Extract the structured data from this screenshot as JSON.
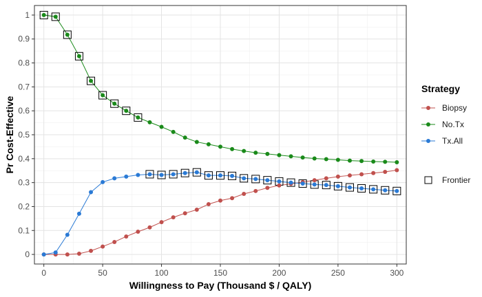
{
  "chart_data": {
    "type": "line",
    "xlabel": "Willingness to Pay (Thousand $ / QALY)",
    "ylabel": "Pr Cost-Effective",
    "xlim": [
      -8,
      308
    ],
    "ylim": [
      -0.04,
      1.04
    ],
    "x_ticks": [
      0,
      50,
      100,
      150,
      200,
      250,
      300
    ],
    "x_tick_labels": [
      "0",
      "50",
      "100",
      "150",
      "200",
      "250",
      "300"
    ],
    "y_ticks": [
      0,
      0.1,
      0.2,
      0.3,
      0.4,
      0.5,
      0.6,
      0.7,
      0.8,
      0.9,
      1
    ],
    "y_tick_labels": [
      "0",
      "0.1",
      "0.2",
      "0.3",
      "0.4",
      "0.5",
      "0.6",
      "0.7",
      "0.8",
      "0.9",
      "1"
    ],
    "grid": true,
    "legend_title": "Strategy",
    "legend_position": "right",
    "x": [
      0,
      10,
      20,
      30,
      40,
      50,
      60,
      70,
      80,
      90,
      100,
      110,
      120,
      130,
      140,
      150,
      160,
      170,
      180,
      190,
      200,
      210,
      220,
      230,
      240,
      250,
      260,
      270,
      280,
      290,
      300
    ],
    "series": [
      {
        "name": "Biopsy",
        "color": "#c0504d",
        "values": [
          0,
          0,
          0,
          0.003,
          0.015,
          0.033,
          0.052,
          0.075,
          0.095,
          0.113,
          0.135,
          0.155,
          0.172,
          0.187,
          0.21,
          0.225,
          0.235,
          0.253,
          0.265,
          0.278,
          0.288,
          0.295,
          0.302,
          0.31,
          0.318,
          0.325,
          0.33,
          0.335,
          0.34,
          0.345,
          0.352
        ]
      },
      {
        "name": "No.Tx",
        "color": "#1a8a1a",
        "values": [
          1,
          0.993,
          0.918,
          0.828,
          0.725,
          0.665,
          0.63,
          0.6,
          0.572,
          0.552,
          0.533,
          0.512,
          0.488,
          0.47,
          0.46,
          0.45,
          0.44,
          0.432,
          0.425,
          0.42,
          0.415,
          0.41,
          0.405,
          0.401,
          0.398,
          0.395,
          0.392,
          0.39,
          0.388,
          0.387,
          0.385
        ]
      },
      {
        "name": "Tx.All",
        "color": "#2a7ad5",
        "values": [
          0,
          0.008,
          0.082,
          0.17,
          0.26,
          0.302,
          0.318,
          0.325,
          0.332,
          0.335,
          0.332,
          0.335,
          0.34,
          0.343,
          0.33,
          0.33,
          0.328,
          0.318,
          0.315,
          0.31,
          0.305,
          0.3,
          0.296,
          0.292,
          0.29,
          0.285,
          0.28,
          0.276,
          0.272,
          0.268,
          0.265
        ]
      }
    ],
    "frontier": {
      "name": "Frontier",
      "points": [
        {
          "x": 0,
          "y": 1
        },
        {
          "x": 10,
          "y": 0.993
        },
        {
          "x": 20,
          "y": 0.918
        },
        {
          "x": 30,
          "y": 0.828
        },
        {
          "x": 40,
          "y": 0.725
        },
        {
          "x": 50,
          "y": 0.665
        },
        {
          "x": 60,
          "y": 0.63
        },
        {
          "x": 70,
          "y": 0.6
        },
        {
          "x": 80,
          "y": 0.572
        },
        {
          "x": 90,
          "y": 0.335
        },
        {
          "x": 100,
          "y": 0.332
        },
        {
          "x": 110,
          "y": 0.335
        },
        {
          "x": 120,
          "y": 0.34
        },
        {
          "x": 130,
          "y": 0.343
        },
        {
          "x": 140,
          "y": 0.33
        },
        {
          "x": 150,
          "y": 0.33
        },
        {
          "x": 160,
          "y": 0.328
        },
        {
          "x": 170,
          "y": 0.318
        },
        {
          "x": 180,
          "y": 0.315
        },
        {
          "x": 190,
          "y": 0.31
        },
        {
          "x": 200,
          "y": 0.305
        },
        {
          "x": 210,
          "y": 0.3
        },
        {
          "x": 220,
          "y": 0.296
        },
        {
          "x": 230,
          "y": 0.292
        },
        {
          "x": 240,
          "y": 0.29
        },
        {
          "x": 250,
          "y": 0.285
        },
        {
          "x": 260,
          "y": 0.28
        },
        {
          "x": 270,
          "y": 0.276
        },
        {
          "x": 280,
          "y": 0.272
        },
        {
          "x": 290,
          "y": 0.268
        },
        {
          "x": 300,
          "y": 0.265
        }
      ]
    }
  }
}
